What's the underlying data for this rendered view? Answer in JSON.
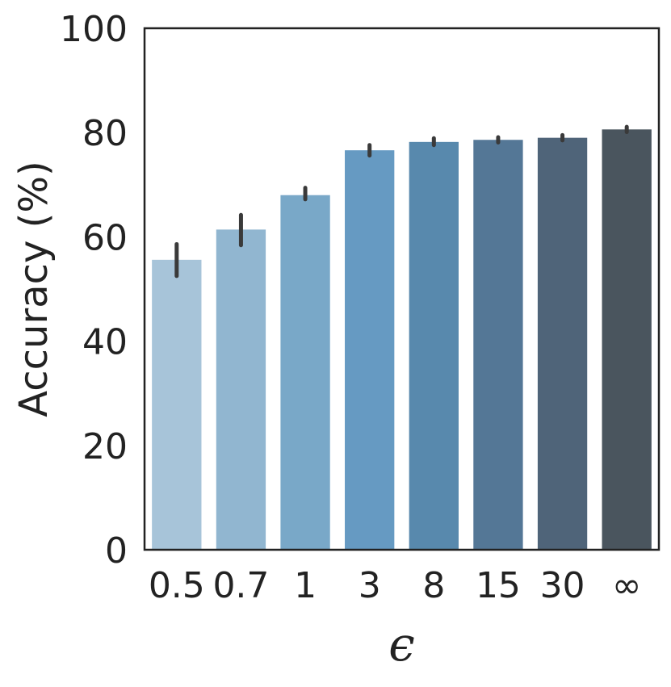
{
  "chart_data": {
    "type": "bar",
    "title": "",
    "xlabel": "ϵ",
    "ylabel": "Accuracy (%)",
    "ylim": [
      0,
      100
    ],
    "yticks": [
      0,
      20,
      40,
      60,
      80,
      100
    ],
    "grid": false,
    "categories": [
      "0.5",
      "0.7",
      "1",
      "3",
      "8",
      "15",
      "30",
      "∞"
    ],
    "values": [
      55.6,
      61.4,
      68.0,
      76.6,
      78.2,
      78.6,
      79.0,
      80.6
    ],
    "error_low": [
      52.5,
      58.4,
      67.2,
      75.6,
      77.6,
      78.1,
      78.5,
      80.1
    ],
    "error_high": [
      58.6,
      64.2,
      69.4,
      77.6,
      78.9,
      79.1,
      79.5,
      81.1
    ],
    "colors": [
      "#a7c4d9",
      "#91b6d0",
      "#79a8c8",
      "#669ac2",
      "#5889ad",
      "#547796",
      "#4f6479",
      "#4a555e"
    ],
    "error_color": "#3a3a3a"
  }
}
